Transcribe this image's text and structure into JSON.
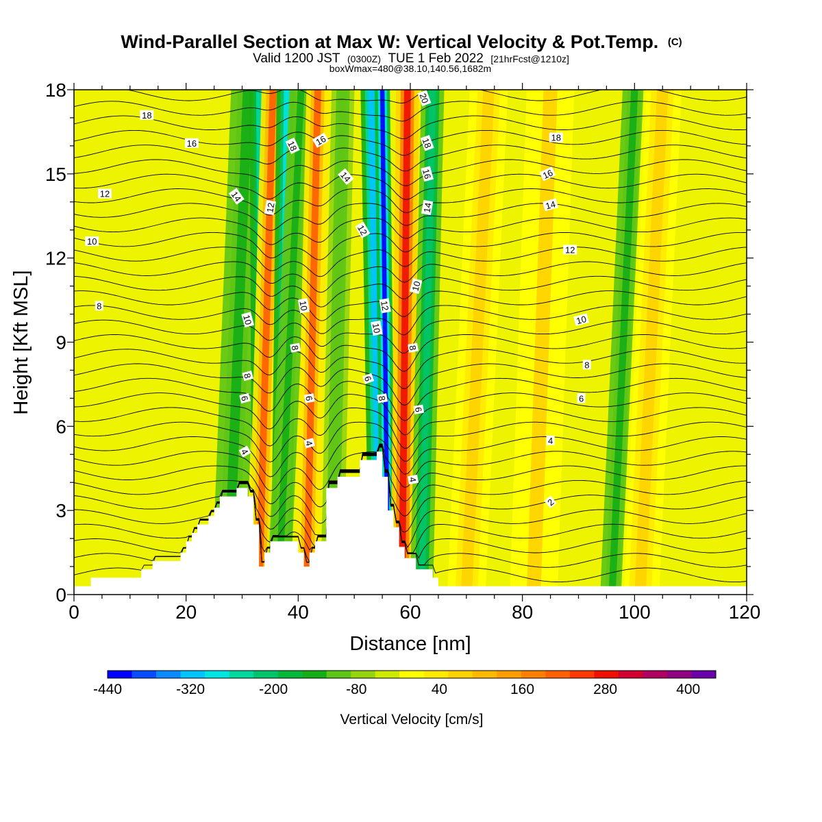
{
  "chart_data": {
    "type": "heatmap",
    "title": "Wind-Parallel Section at Max W: Vertical Velocity & Pot.Temp.",
    "title_tag": "(C)",
    "subtitle": {
      "part1": "Valid 1200 JST",
      "part2": "(0300Z)",
      "part3": "TUE 1 Feb 2022",
      "part4": "[21hrFcst@1210z]"
    },
    "subtitle2": "boxWmax=480@38.10,140.56,1682m",
    "xlabel": "Distance [nm]",
    "ylabel": "Height [Kft MSL]",
    "xlim": [
      0,
      120
    ],
    "ylim": [
      0,
      18
    ],
    "xticks": [
      "0",
      "20",
      "40",
      "60",
      "80",
      "100",
      "120"
    ],
    "yticks": [
      "0",
      "3",
      "6",
      "9",
      "12",
      "15",
      "18"
    ],
    "colorbar": {
      "label": "Vertical Velocity [cm/s]",
      "min": -440,
      "max": 440,
      "step": 40,
      "tick_labels": [
        "-440",
        "-320",
        "-200",
        "-80",
        "40",
        "160",
        "280",
        "400"
      ],
      "colors": [
        "#0000ff",
        "#0a4cff",
        "#0a8cff",
        "#00c4ff",
        "#00e4e4",
        "#00d8a0",
        "#00c46a",
        "#06b83a",
        "#16ae16",
        "#5ec616",
        "#96d410",
        "#cdea00",
        "#ffff00",
        "#ffea00",
        "#ffd200",
        "#ffba00",
        "#ff9e00",
        "#ff8000",
        "#ff6000",
        "#ff3a00",
        "#ee1000",
        "#d00030",
        "#b00060",
        "#900080",
        "#6a00a8"
      ]
    },
    "terrain": [
      [
        0,
        0.3
      ],
      [
        3,
        0.3
      ],
      [
        3,
        0.6
      ],
      [
        12,
        0.6
      ],
      [
        12,
        0.9
      ],
      [
        14,
        0.9
      ],
      [
        14,
        1.2
      ],
      [
        19,
        1.2
      ],
      [
        19,
        1.5
      ],
      [
        20,
        1.5
      ],
      [
        20,
        1.9
      ],
      [
        21,
        1.9
      ],
      [
        21,
        2.2
      ],
      [
        22,
        2.2
      ],
      [
        22,
        2.5
      ],
      [
        24,
        2.5
      ],
      [
        24,
        2.8
      ],
      [
        25,
        2.8
      ],
      [
        25,
        3.1
      ],
      [
        26,
        3.1
      ],
      [
        26,
        3.5
      ],
      [
        29,
        3.5
      ],
      [
        29,
        3.8
      ],
      [
        31,
        3.8
      ],
      [
        31,
        3.5
      ],
      [
        32,
        3.5
      ],
      [
        32,
        2.5
      ],
      [
        33,
        2.5
      ],
      [
        33,
        1.0
      ],
      [
        34,
        1.0
      ],
      [
        34,
        1.5
      ],
      [
        35,
        1.5
      ],
      [
        35,
        1.9
      ],
      [
        40,
        1.9
      ],
      [
        40,
        1.5
      ],
      [
        41,
        1.5
      ],
      [
        41,
        1.0
      ],
      [
        42,
        1.0
      ],
      [
        42,
        1.5
      ],
      [
        43,
        1.5
      ],
      [
        43,
        1.9
      ],
      [
        45,
        1.9
      ],
      [
        45,
        3.8
      ],
      [
        47,
        3.8
      ],
      [
        47,
        4.2
      ],
      [
        51,
        4.2
      ],
      [
        51,
        4.8
      ],
      [
        54,
        4.8
      ],
      [
        54,
        5.1
      ],
      [
        55,
        5.1
      ],
      [
        55,
        4.2
      ],
      [
        56,
        4.2
      ],
      [
        56,
        3.0
      ],
      [
        57,
        3.0
      ],
      [
        57,
        2.4
      ],
      [
        58,
        2.4
      ],
      [
        58,
        1.7
      ],
      [
        59,
        1.7
      ],
      [
        59,
        1.3
      ],
      [
        61,
        1.3
      ],
      [
        61,
        0.9
      ],
      [
        64,
        0.9
      ],
      [
        64,
        0.6
      ],
      [
        65,
        0.6
      ],
      [
        65,
        0.3
      ],
      [
        120,
        0.3
      ]
    ],
    "velocity_bands": [
      {
        "x_top": 31.0,
        "x_bottom": 27.5,
        "width": 3.5,
        "value": -120
      },
      {
        "x_top": 33.0,
        "x_bottom": 33.5,
        "width": 2.0,
        "value": -240
      },
      {
        "x_top": 35.5,
        "x_bottom": 33.0,
        "width": 2.4,
        "value": 300
      },
      {
        "x_top": 38.0,
        "x_bottom": 37.0,
        "width": 2.2,
        "value": -280
      },
      {
        "x_top": 40.5,
        "x_bottom": 36.5,
        "width": 2.4,
        "value": -120
      },
      {
        "x_top": 43.5,
        "x_bottom": 41.5,
        "width": 2.4,
        "value": 300
      },
      {
        "x_top": 48.0,
        "x_bottom": 46.0,
        "width": 2.4,
        "value": -80
      },
      {
        "x_top": 53.0,
        "x_bottom": 54.5,
        "width": 2.2,
        "value": -320
      },
      {
        "x_top": 55.0,
        "x_bottom": 56.0,
        "width": 1.6,
        "value": -420
      },
      {
        "x_top": 59.5,
        "x_bottom": 58.5,
        "width": 2.4,
        "value": 380
      },
      {
        "x_top": 64.0,
        "x_bottom": 62.0,
        "width": 2.4,
        "value": -200
      },
      {
        "x_top": 74.0,
        "x_bottom": 70.0,
        "width": 4.0,
        "value": 140
      },
      {
        "x_top": 85.0,
        "x_bottom": 82.0,
        "width": 5.0,
        "value": 120
      },
      {
        "x_top": 100.0,
        "x_bottom": 96.0,
        "width": 2.5,
        "value": -120
      },
      {
        "x_top": 105.0,
        "x_bottom": 101.0,
        "width": 4.0,
        "value": 140
      }
    ],
    "contour_labels": [
      {
        "x": 13,
        "y": 17.1,
        "text": "18",
        "angle": 0
      },
      {
        "x": 21,
        "y": 16.1,
        "text": "16",
        "angle": 0
      },
      {
        "x": 5.5,
        "y": 14.3,
        "text": "12",
        "angle": 0
      },
      {
        "x": 3.2,
        "y": 12.6,
        "text": "10",
        "angle": 0
      },
      {
        "x": 4.5,
        "y": 10.3,
        "text": "8",
        "angle": 0
      },
      {
        "x": 29,
        "y": 14.2,
        "text": "14",
        "angle": 55
      },
      {
        "x": 35,
        "y": 13.8,
        "text": "12",
        "angle": -80
      },
      {
        "x": 39,
        "y": 16.0,
        "text": "18",
        "angle": 65
      },
      {
        "x": 44,
        "y": 16.2,
        "text": "16",
        "angle": -30
      },
      {
        "x": 48.5,
        "y": 14.9,
        "text": "14",
        "angle": 50
      },
      {
        "x": 51.5,
        "y": 13.0,
        "text": "12",
        "angle": 60
      },
      {
        "x": 62.5,
        "y": 17.7,
        "text": "20",
        "angle": 70
      },
      {
        "x": 63,
        "y": 16.1,
        "text": "18",
        "angle": 70
      },
      {
        "x": 63,
        "y": 15.0,
        "text": "16",
        "angle": 75
      },
      {
        "x": 63,
        "y": 13.8,
        "text": "14",
        "angle": -80
      },
      {
        "x": 31,
        "y": 9.8,
        "text": "10",
        "angle": 75
      },
      {
        "x": 41,
        "y": 10.3,
        "text": "10",
        "angle": 80
      },
      {
        "x": 55.5,
        "y": 10.3,
        "text": "12",
        "angle": 80
      },
      {
        "x": 54,
        "y": 9.5,
        "text": "10",
        "angle": 80
      },
      {
        "x": 61,
        "y": 11.0,
        "text": "10",
        "angle": -75
      },
      {
        "x": 39.5,
        "y": 8.8,
        "text": "8",
        "angle": 80
      },
      {
        "x": 60.5,
        "y": 8.8,
        "text": "8",
        "angle": 80
      },
      {
        "x": 31,
        "y": 7.8,
        "text": "8",
        "angle": 75
      },
      {
        "x": 30.5,
        "y": 7.0,
        "text": "6",
        "angle": 75
      },
      {
        "x": 42,
        "y": 7.0,
        "text": "6",
        "angle": 80
      },
      {
        "x": 52.5,
        "y": 7.7,
        "text": "6",
        "angle": 70
      },
      {
        "x": 55,
        "y": 7.0,
        "text": "8",
        "angle": 80
      },
      {
        "x": 61.5,
        "y": 6.6,
        "text": "6",
        "angle": 80
      },
      {
        "x": 30.5,
        "y": 5.1,
        "text": "4",
        "angle": 60
      },
      {
        "x": 42,
        "y": 5.4,
        "text": "4",
        "angle": 75
      },
      {
        "x": 60.5,
        "y": 4.1,
        "text": "4",
        "angle": 80
      },
      {
        "x": 86,
        "y": 16.3,
        "text": "18",
        "angle": 0
      },
      {
        "x": 84.5,
        "y": 15.0,
        "text": "16",
        "angle": -25
      },
      {
        "x": 85,
        "y": 13.9,
        "text": "14",
        "angle": -15
      },
      {
        "x": 88.5,
        "y": 12.3,
        "text": "12",
        "angle": 0
      },
      {
        "x": 90.5,
        "y": 9.8,
        "text": "10",
        "angle": -15
      },
      {
        "x": 91.5,
        "y": 8.2,
        "text": "8",
        "angle": 0
      },
      {
        "x": 90.5,
        "y": 7.0,
        "text": "6",
        "angle": 0
      },
      {
        "x": 85,
        "y": 5.5,
        "text": "4",
        "angle": 0
      },
      {
        "x": 85,
        "y": 3.3,
        "text": "2",
        "angle": -40
      }
    ]
  }
}
